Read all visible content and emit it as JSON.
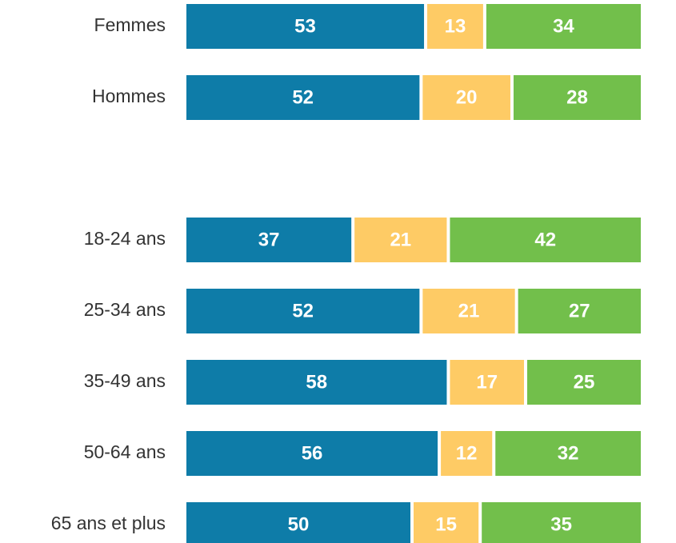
{
  "chart_data": {
    "type": "stacked-bar-horizontal",
    "categories": [
      "Femmes",
      "Hommes",
      null,
      "18-24 ans",
      "25-34 ans",
      "35-49 ans",
      "50-64 ans",
      "65 ans et plus"
    ],
    "series": [
      {
        "color": "#0e7ca8",
        "values": [
          53,
          52,
          null,
          37,
          52,
          58,
          56,
          50
        ]
      },
      {
        "color": "#fecb65",
        "values": [
          13,
          20,
          null,
          21,
          21,
          17,
          12,
          15
        ]
      },
      {
        "color": "#72bf4b",
        "values": [
          34,
          28,
          null,
          42,
          27,
          25,
          32,
          35
        ]
      }
    ],
    "xlim": [
      0,
      100
    ]
  }
}
